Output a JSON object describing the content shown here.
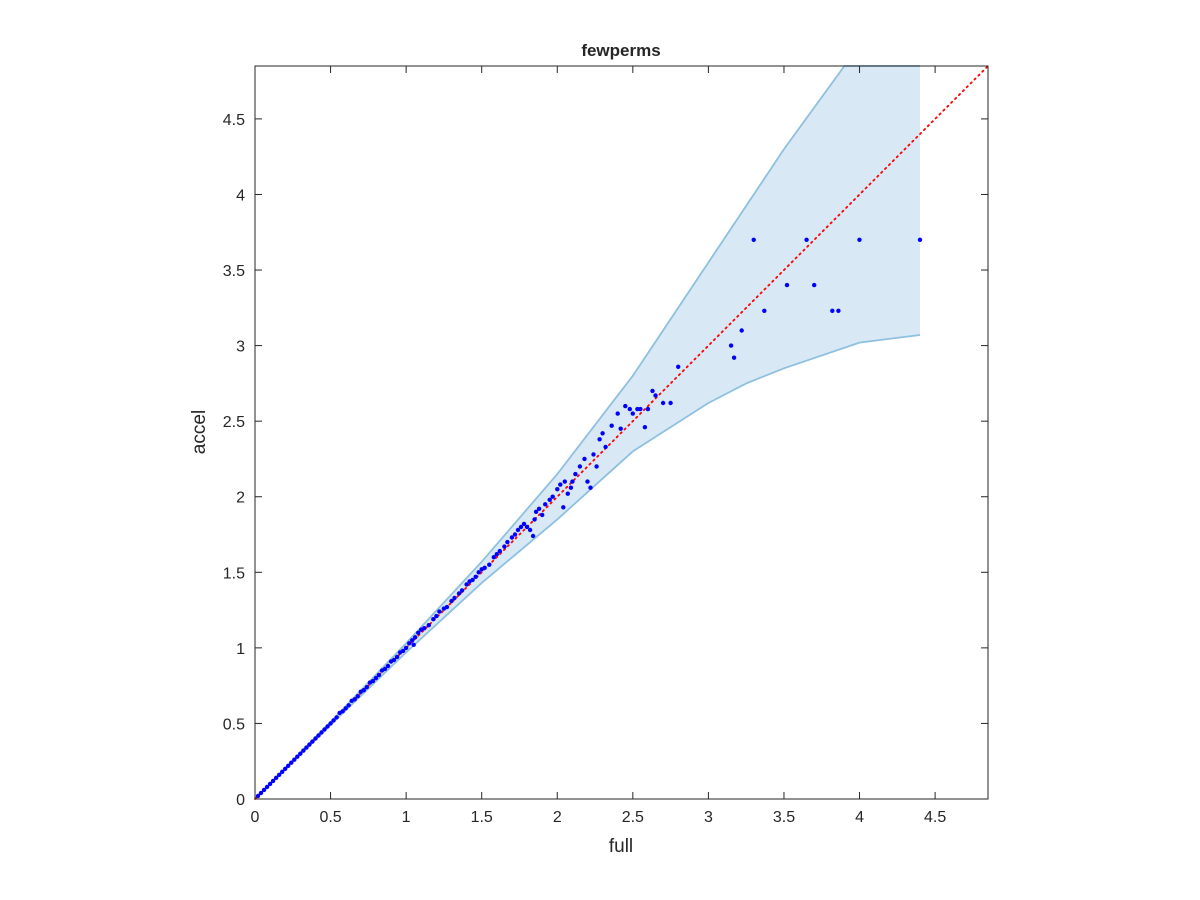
{
  "chart_data": {
    "type": "scatter",
    "title": "fewperms",
    "xlabel": "full",
    "ylabel": "accel",
    "xlim": [
      0,
      4.85
    ],
    "ylim": [
      0,
      4.85
    ],
    "xticks": [
      "0",
      "0.5",
      "1",
      "1.5",
      "2",
      "2.5",
      "3",
      "3.5",
      "4",
      "4.5"
    ],
    "yticks": [
      "0",
      "0.5",
      "1",
      "1.5",
      "2",
      "2.5",
      "3",
      "3.5",
      "4",
      "4.5"
    ],
    "grid": false,
    "colors": {
      "points": "#0000ff",
      "reference_line": "#ff0000",
      "band_fill": "#d8e8f4",
      "band_edge": "#8ec0e0",
      "axes": "#262626"
    },
    "reference_line": {
      "style": "dotted",
      "from": [
        0,
        0
      ],
      "to": [
        4.85,
        4.85
      ]
    },
    "band": {
      "upper": [
        [
          0,
          0
        ],
        [
          0.5,
          0.51
        ],
        [
          1,
          1.03
        ],
        [
          1.5,
          1.57
        ],
        [
          2,
          2.15
        ],
        [
          2.5,
          2.8
        ],
        [
          3,
          3.55
        ],
        [
          3.5,
          4.3
        ],
        [
          3.9,
          4.85
        ],
        [
          4.4,
          4.85
        ]
      ],
      "lower": [
        [
          0,
          0
        ],
        [
          0.5,
          0.49
        ],
        [
          1,
          0.97
        ],
        [
          1.5,
          1.43
        ],
        [
          2,
          1.85
        ],
        [
          2.5,
          2.3
        ],
        [
          3,
          2.62
        ],
        [
          3.25,
          2.75
        ],
        [
          3.5,
          2.85
        ],
        [
          4,
          3.02
        ],
        [
          4.4,
          3.07
        ]
      ]
    },
    "series": [
      {
        "points": [
          [
            0.02,
            0.02
          ],
          [
            0.04,
            0.04
          ],
          [
            0.06,
            0.06
          ],
          [
            0.08,
            0.08
          ],
          [
            0.1,
            0.1
          ],
          [
            0.12,
            0.12
          ],
          [
            0.14,
            0.14
          ],
          [
            0.16,
            0.16
          ],
          [
            0.18,
            0.18
          ],
          [
            0.2,
            0.2
          ],
          [
            0.22,
            0.22
          ],
          [
            0.24,
            0.24
          ],
          [
            0.26,
            0.26
          ],
          [
            0.28,
            0.28
          ],
          [
            0.3,
            0.3
          ],
          [
            0.32,
            0.32
          ],
          [
            0.34,
            0.34
          ],
          [
            0.36,
            0.36
          ],
          [
            0.38,
            0.38
          ],
          [
            0.4,
            0.4
          ],
          [
            0.42,
            0.42
          ],
          [
            0.44,
            0.44
          ],
          [
            0.46,
            0.46
          ],
          [
            0.48,
            0.48
          ],
          [
            0.5,
            0.5
          ],
          [
            0.52,
            0.52
          ],
          [
            0.54,
            0.54
          ],
          [
            0.56,
            0.57
          ],
          [
            0.58,
            0.58
          ],
          [
            0.6,
            0.6
          ],
          [
            0.62,
            0.62
          ],
          [
            0.64,
            0.65
          ],
          [
            0.66,
            0.66
          ],
          [
            0.68,
            0.68
          ],
          [
            0.7,
            0.71
          ],
          [
            0.72,
            0.72
          ],
          [
            0.74,
            0.74
          ],
          [
            0.76,
            0.77
          ],
          [
            0.78,
            0.78
          ],
          [
            0.8,
            0.8
          ],
          [
            0.82,
            0.82
          ],
          [
            0.84,
            0.85
          ],
          [
            0.86,
            0.86
          ],
          [
            0.88,
            0.88
          ],
          [
            0.9,
            0.91
          ],
          [
            0.92,
            0.92
          ],
          [
            0.94,
            0.94
          ],
          [
            0.96,
            0.97
          ],
          [
            0.98,
            0.98
          ],
          [
            1.0,
            1.0
          ],
          [
            1.02,
            1.03
          ],
          [
            1.04,
            1.05
          ],
          [
            1.06,
            1.07
          ],
          [
            1.08,
            1.1
          ],
          [
            1.1,
            1.12
          ],
          [
            1.12,
            1.13
          ],
          [
            1.05,
            1.02
          ],
          [
            1.15,
            1.15
          ],
          [
            1.18,
            1.19
          ],
          [
            1.2,
            1.21
          ],
          [
            1.22,
            1.24
          ],
          [
            1.25,
            1.26
          ],
          [
            1.27,
            1.27
          ],
          [
            1.3,
            1.31
          ],
          [
            1.32,
            1.33
          ],
          [
            1.35,
            1.36
          ],
          [
            1.37,
            1.38
          ],
          [
            1.4,
            1.42
          ],
          [
            1.42,
            1.44
          ],
          [
            1.44,
            1.45
          ],
          [
            1.46,
            1.47
          ],
          [
            1.48,
            1.5
          ],
          [
            1.5,
            1.52
          ],
          [
            1.52,
            1.53
          ],
          [
            1.55,
            1.55
          ],
          [
            1.58,
            1.6
          ],
          [
            1.6,
            1.62
          ],
          [
            1.62,
            1.64
          ],
          [
            1.65,
            1.67
          ],
          [
            1.67,
            1.7
          ],
          [
            1.7,
            1.73
          ],
          [
            1.72,
            1.75
          ],
          [
            1.74,
            1.78
          ],
          [
            1.76,
            1.8
          ],
          [
            1.78,
            1.82
          ],
          [
            1.8,
            1.8
          ],
          [
            1.82,
            1.78
          ],
          [
            1.84,
            1.74
          ],
          [
            1.85,
            1.85
          ],
          [
            1.86,
            1.9
          ],
          [
            1.88,
            1.92
          ],
          [
            1.9,
            1.88
          ],
          [
            1.92,
            1.95
          ],
          [
            1.95,
            1.98
          ],
          [
            1.97,
            2.0
          ],
          [
            2.0,
            2.05
          ],
          [
            2.02,
            2.08
          ],
          [
            2.04,
            1.93
          ],
          [
            2.05,
            2.1
          ],
          [
            2.07,
            2.02
          ],
          [
            2.09,
            2.06
          ],
          [
            2.1,
            2.1
          ],
          [
            2.12,
            2.15
          ],
          [
            2.15,
            2.2
          ],
          [
            2.18,
            2.25
          ],
          [
            2.2,
            2.1
          ],
          [
            2.22,
            2.06
          ],
          [
            2.24,
            2.28
          ],
          [
            2.26,
            2.2
          ],
          [
            2.28,
            2.38
          ],
          [
            2.3,
            2.42
          ],
          [
            2.32,
            2.33
          ],
          [
            2.36,
            2.47
          ],
          [
            2.4,
            2.55
          ],
          [
            2.42,
            2.45
          ],
          [
            2.45,
            2.6
          ],
          [
            2.48,
            2.58
          ],
          [
            2.5,
            2.55
          ],
          [
            2.53,
            2.58
          ],
          [
            2.55,
            2.58
          ],
          [
            2.58,
            2.46
          ],
          [
            2.6,
            2.58
          ],
          [
            2.63,
            2.7
          ],
          [
            2.65,
            2.67
          ],
          [
            2.7,
            2.62
          ],
          [
            2.75,
            2.62
          ],
          [
            2.8,
            2.86
          ],
          [
            3.15,
            3.0
          ],
          [
            3.17,
            2.92
          ],
          [
            3.22,
            3.1
          ],
          [
            3.3,
            3.7
          ],
          [
            3.37,
            3.23
          ],
          [
            3.52,
            3.4
          ],
          [
            3.65,
            3.7
          ],
          [
            3.7,
            3.4
          ],
          [
            3.82,
            3.23
          ],
          [
            3.86,
            3.23
          ],
          [
            4.0,
            3.7
          ],
          [
            4.4,
            3.7
          ]
        ]
      }
    ]
  }
}
